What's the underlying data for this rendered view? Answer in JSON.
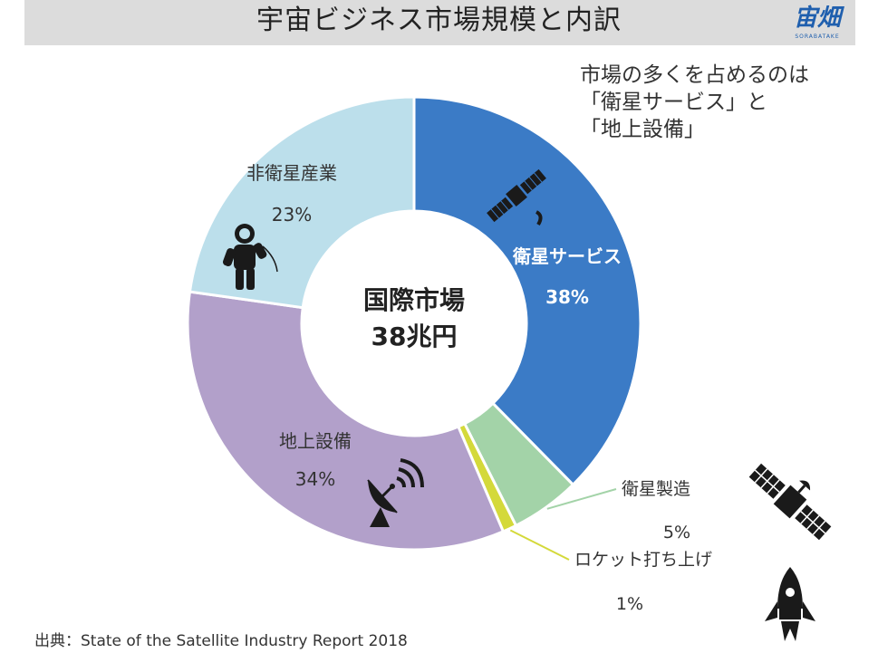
{
  "title": "宇宙ビジネス市場規模と内訳",
  "logo": {
    "text": "宙畑",
    "sub": "SORABATAKE"
  },
  "note": {
    "lines": [
      "市場の多くを占めるのは",
      "「衛星サービス」と",
      "「地上設備」"
    ]
  },
  "source": "出典：State of the Satellite Industry Report 2018",
  "colors": {
    "satellite_services": "#3b7bc6",
    "satellite_manufacturing": "#a3d3a8",
    "launch": "#d4d93a",
    "ground_equipment": "#b2a0ca",
    "non_satellite": "#bcdfeb"
  },
  "chart_data": {
    "type": "pie",
    "style": "donut",
    "center_label": [
      "国際市場",
      "38兆円"
    ],
    "slices": [
      {
        "key": "satellite_services",
        "label": "衛星サービス",
        "value_label": "38%",
        "value": 38,
        "icon": "satellite-dish-icon"
      },
      {
        "key": "satellite_manufacturing",
        "label": "衛星製造",
        "value_label": "5%",
        "value": 5,
        "icon": "satellite-icon"
      },
      {
        "key": "launch",
        "label": "ロケット打ち上げ",
        "value_label": "1%",
        "value": 1,
        "icon": "rocket-icon"
      },
      {
        "key": "ground_equipment",
        "label": "地上設備",
        "value_label": "34%",
        "value": 34,
        "icon": "satellite-dish-icon"
      },
      {
        "key": "non_satellite",
        "label": "非衛星産業",
        "value_label": "23%",
        "value": 23,
        "icon": "astronaut-icon"
      }
    ]
  }
}
